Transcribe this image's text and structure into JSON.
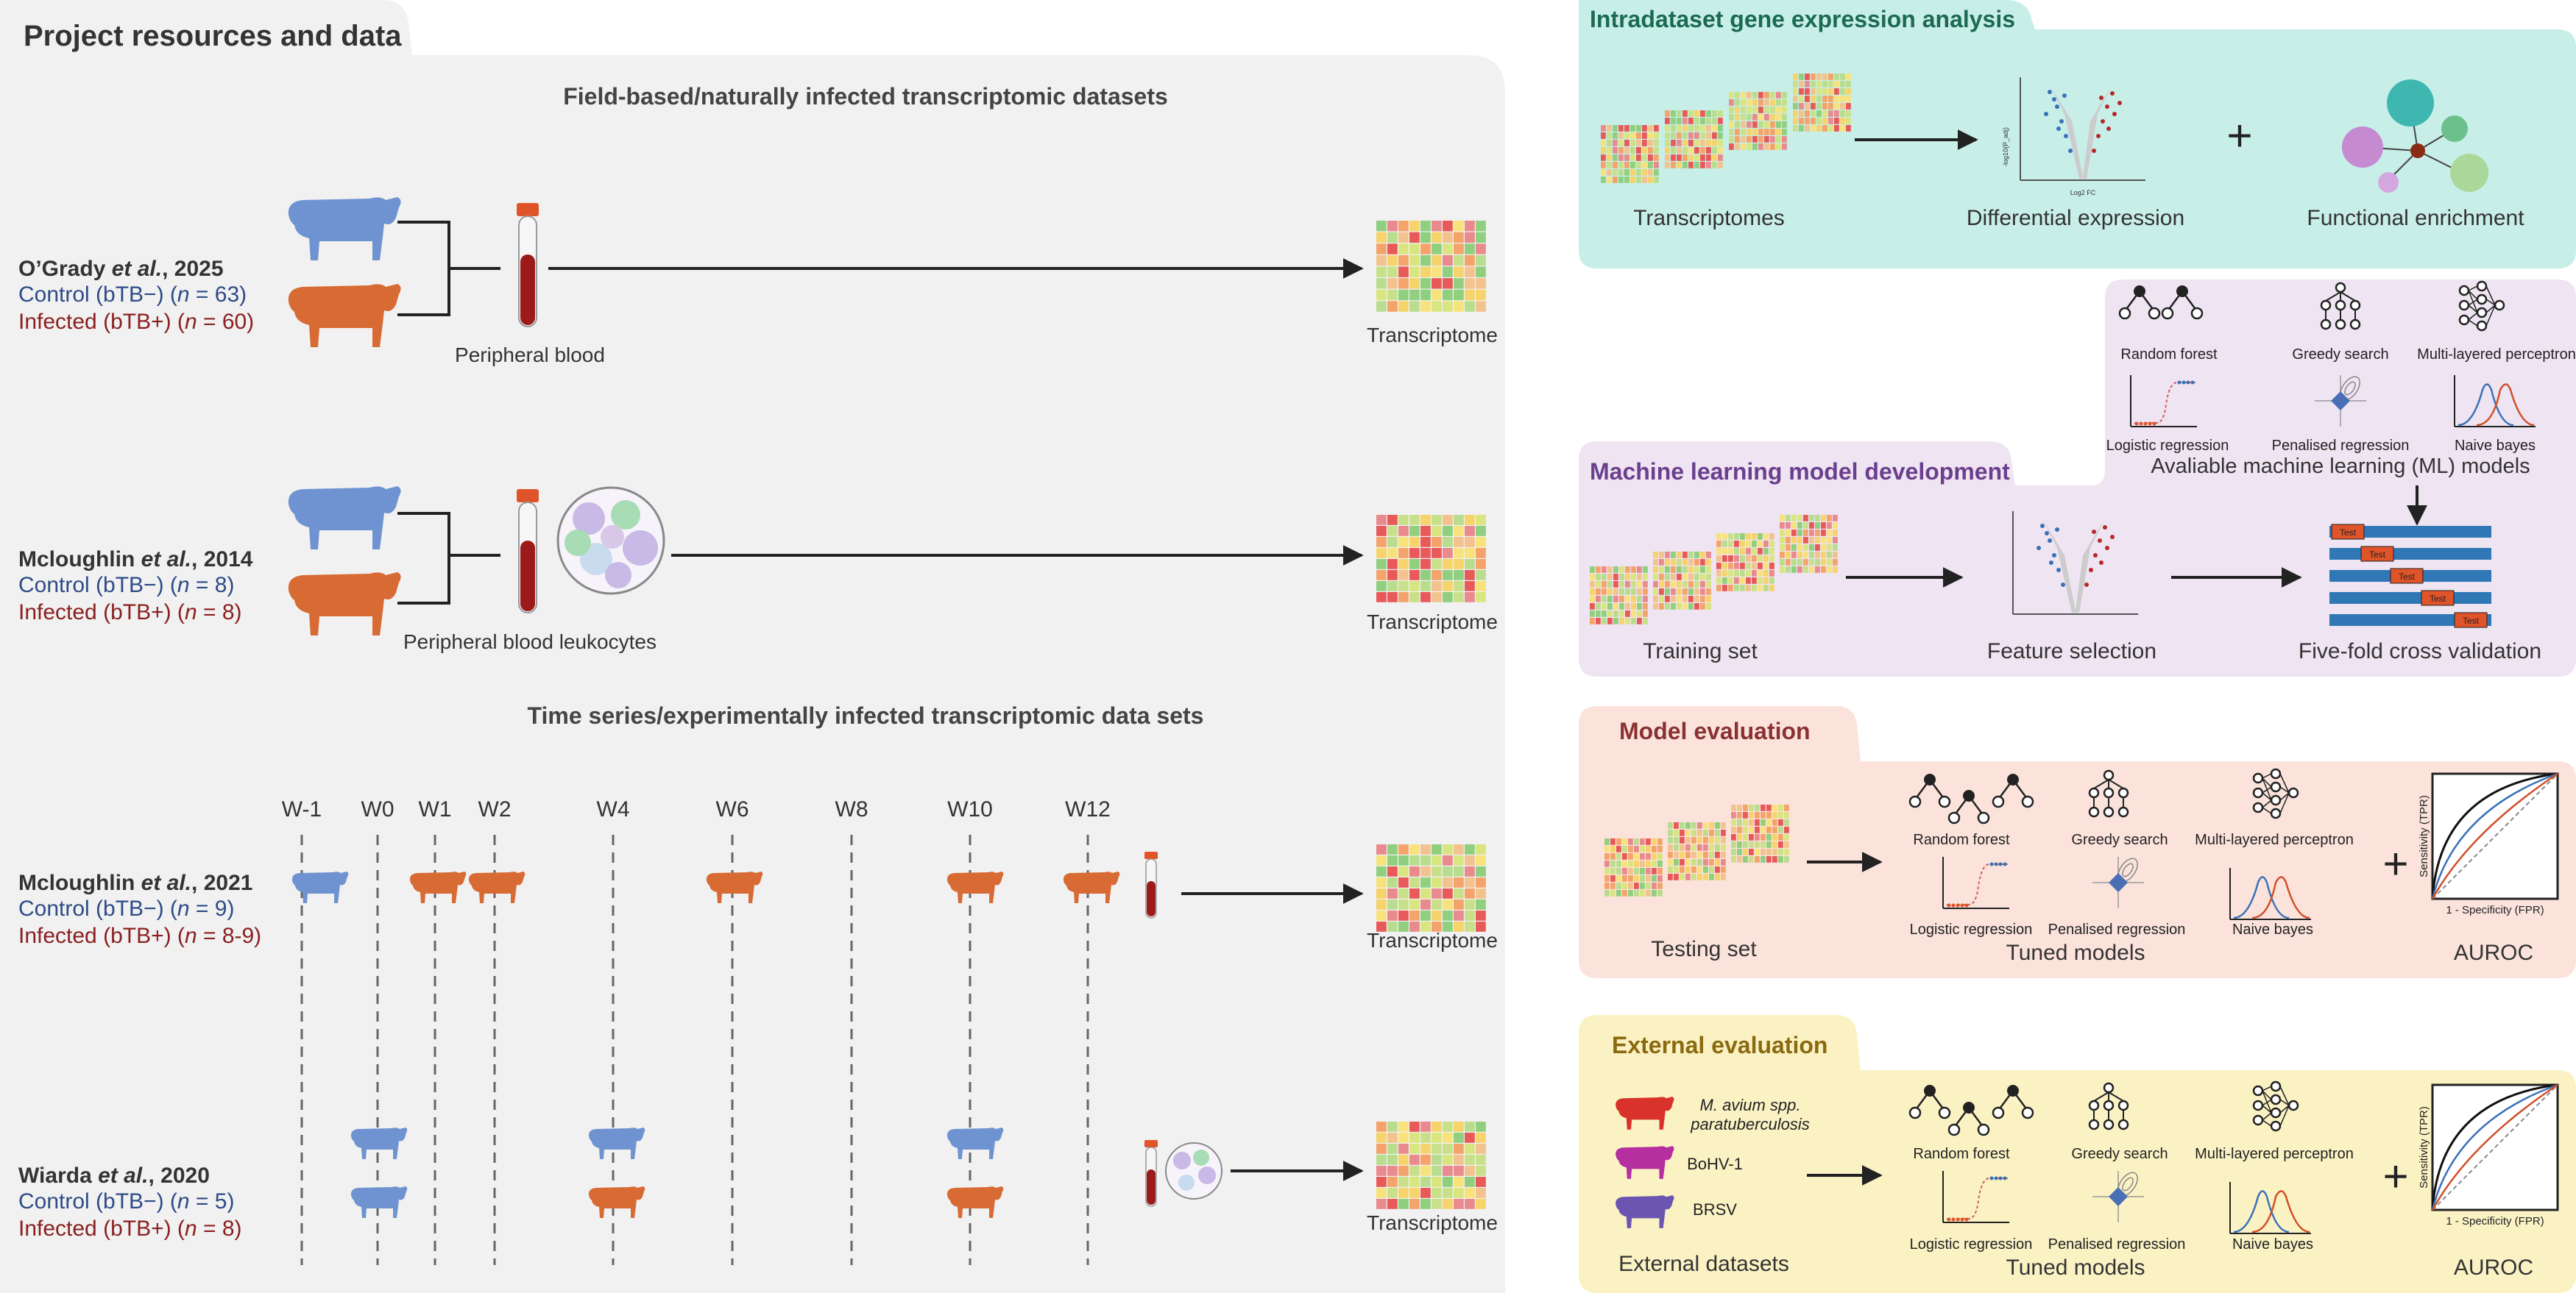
{
  "left": {
    "title": "Project resources and data",
    "field_heading": "Field-based/naturally infected transcriptomic datasets",
    "time_heading": "Time series/experimentally infected transcriptomic data sets",
    "studies": [
      {
        "author": "O’Grady",
        "etal": "et al.",
        "year": ", 2025",
        "control_pre": "Control (bTB−) (",
        "control_n": " = 63)",
        "infected_pre": "Infected (bTB+) (",
        "infected_n": " = 60)",
        "sample": "Peripheral blood",
        "output": "Transcriptome"
      },
      {
        "author": "Mcloughlin",
        "etal": "et al.",
        "year": ", 2014",
        "control_pre": "Control (bTB−) (",
        "control_n": " = 8)",
        "infected_pre": "Infected (bTB+) (",
        "infected_n": " = 8)",
        "sample": "Peripheral blood leukocytes",
        "output": "Transcriptome"
      },
      {
        "author": "Mcloughlin",
        "etal": "et al.",
        "year": ", 2021",
        "control_pre": "Control (bTB−) (",
        "control_n": " = 9)",
        "infected_pre": "Infected (bTB+) (",
        "infected_n": " = 8-9)",
        "output": "Transcriptome"
      },
      {
        "author": "Wiarda",
        "etal": "et al.",
        "year": ", 2020",
        "control_pre": "Control (bTB−) (",
        "control_n": " = 5)",
        "infected_pre": "Infected (bTB+) (",
        "infected_n": " = 8)",
        "output": "Transcriptome"
      }
    ],
    "n_symbol": "n",
    "weeks": [
      "W-1",
      "W0",
      "W1",
      "W2",
      "W4",
      "W6",
      "W8",
      "W10",
      "W12"
    ]
  },
  "intra": {
    "title": "Intradataset gene expression analysis",
    "labels": [
      "Transcriptomes",
      "Differential expression",
      "Functional enrichment"
    ],
    "plus": "+",
    "volcano_y": "-log10(P_adj)",
    "volcano_x": "Log2 FC"
  },
  "ml": {
    "title": "Machine learning model development",
    "models": [
      "Random forest",
      "Greedy search",
      "Multi-layered perceptron",
      "Logistic regression",
      "Penalised regression",
      "Naive bayes"
    ],
    "models_caption": "Avaliable machine learning (ML) models",
    "labels": [
      "Training set",
      "Feature selection",
      "Five-fold cross validation"
    ],
    "test_tag": "Test"
  },
  "eval": {
    "title": "Model evaluation",
    "models": [
      "Random forest",
      "Greedy search",
      "Multi-layered perceptron",
      "Logistic regression",
      "Penalised regression",
      "Naive bayes"
    ],
    "labels": [
      "Testing set",
      "Tuned models",
      "AUROC"
    ],
    "roc_y": "Sensitivity (TPR)",
    "roc_x": "1 - Specificity (FPR)",
    "plus": "+"
  },
  "ext": {
    "title": "External evaluation",
    "datasets": [
      "M. avium spp.",
      "paratuberculosis",
      "BoHV-1",
      "BRSV"
    ],
    "labels": [
      "External datasets",
      "Tuned models",
      "AUROC"
    ],
    "models": [
      "Random forest",
      "Greedy search",
      "Multi-layered perceptron",
      "Logistic regression",
      "Penalised regression",
      "Naive bayes"
    ],
    "roc_y": "Sensitivity (TPR)",
    "roc_x": "1 - Specificity (FPR)",
    "plus": "+"
  },
  "colors": {
    "left_bg": "#f1f1f1",
    "intra_bg": "#c8eee8",
    "ml_bg": "#efe4f1",
    "eval_bg": "#fbe3dc",
    "ext_bg": "#fbf2c4",
    "control": "#2d4b86",
    "infected": "#8a1f1f",
    "ml_title": "#6b3f8f",
    "eval_title": "#8a3232",
    "intra_title": "#1b6a52",
    "ext_title": "#8a6a10",
    "cow_blue": "#6f93d1",
    "cow_orange": "#d86a33"
  }
}
